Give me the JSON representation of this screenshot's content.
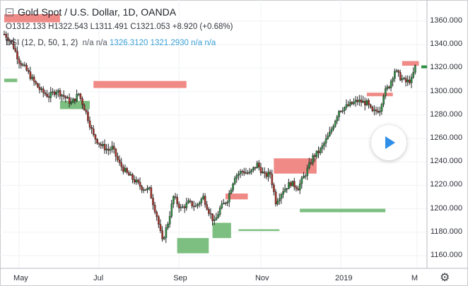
{
  "header": {
    "title": "Gold Spot / U.S. Dollar, 1D, OANDA",
    "ohlc": "O1312.133 H1322.543 L1311.491 C1321.053 +8.920 (+0.68%)",
    "indicator_name": "DSI (12, D, 50, 1, 2)",
    "indicator_na1": "n/a n/a",
    "indicator_values": "1326.3120 1321.2930 n/a n/a"
  },
  "icons": {
    "settings": "gear-icon",
    "play": "play-icon",
    "collapse": "collapse-icon"
  },
  "colors": {
    "up": "#2c8e40",
    "down": "#a83228",
    "candle_outline": "#222222",
    "demand_zone": "#7dbf80",
    "supply_zone": "#f08a86",
    "indicator_text": "#3a9fd6"
  },
  "chart_data": {
    "type": "candlestick",
    "symbol": "Gold Spot / U.S. Dollar",
    "timeframe": "1D",
    "source": "OANDA",
    "ylim": [
      1150,
      1370
    ],
    "ytick_labels": [
      "1160.000",
      "1180.000",
      "1200.000",
      "1220.000",
      "1240.000",
      "1260.000",
      "1280.000",
      "1300.000",
      "1320.000",
      "1340.000",
      "1360.000"
    ],
    "ytick_values": [
      1160,
      1180,
      1200,
      1220,
      1240,
      1260,
      1280,
      1300,
      1320,
      1340,
      1360
    ],
    "xtick_labels": [
      "May",
      "Jul",
      "Sep",
      "Nov",
      "2019",
      "M"
    ],
    "xtick_bar_index": [
      8,
      51,
      94,
      138,
      181,
      222
    ],
    "last_close": 1321.053,
    "price_path": [
      [
        0,
        1349
      ],
      [
        4,
        1342
      ],
      [
        8,
        1326
      ],
      [
        12,
        1318
      ],
      [
        16,
        1308
      ],
      [
        20,
        1300
      ],
      [
        24,
        1296
      ],
      [
        28,
        1301
      ],
      [
        32,
        1296
      ],
      [
        36,
        1290
      ],
      [
        40,
        1298
      ],
      [
        44,
        1282
      ],
      [
        48,
        1262
      ],
      [
        52,
        1254
      ],
      [
        56,
        1250
      ],
      [
        58,
        1252
      ],
      [
        62,
        1238
      ],
      [
        66,
        1230
      ],
      [
        70,
        1224
      ],
      [
        74,
        1218
      ],
      [
        78,
        1216
      ],
      [
        82,
        1194
      ],
      [
        85,
        1172
      ],
      [
        88,
        1188
      ],
      [
        91,
        1210
      ],
      [
        95,
        1200
      ],
      [
        99,
        1205
      ],
      [
        103,
        1202
      ],
      [
        107,
        1210
      ],
      [
        110,
        1198
      ],
      [
        113,
        1188
      ],
      [
        116,
        1200
      ],
      [
        120,
        1208
      ],
      [
        124,
        1228
      ],
      [
        128,
        1232
      ],
      [
        132,
        1230
      ],
      [
        136,
        1238
      ],
      [
        140,
        1228
      ],
      [
        143,
        1230
      ],
      [
        146,
        1206
      ],
      [
        150,
        1216
      ],
      [
        154,
        1222
      ],
      [
        158,
        1218
      ],
      [
        162,
        1230
      ],
      [
        166,
        1244
      ],
      [
        170,
        1250
      ],
      [
        175,
        1264
      ],
      [
        180,
        1284
      ],
      [
        185,
        1288
      ],
      [
        190,
        1292
      ],
      [
        195,
        1290
      ],
      [
        198,
        1282
      ],
      [
        202,
        1285
      ],
      [
        204,
        1298
      ],
      [
        207,
        1305
      ],
      [
        210,
        1318
      ],
      [
        213,
        1312
      ],
      [
        216,
        1308
      ],
      [
        219,
        1310
      ],
      [
        221,
        1321
      ]
    ],
    "zones": [
      {
        "kind": "supply",
        "x0": 0,
        "x1": 30,
        "y0": 1359,
        "y1": 1366
      },
      {
        "kind": "supply",
        "x0": 48,
        "x1": 98,
        "y0": 1303,
        "y1": 1309
      },
      {
        "kind": "supply",
        "x0": 119,
        "x1": 131,
        "y0": 1208,
        "y1": 1213
      },
      {
        "kind": "supply",
        "x0": 145,
        "x1": 168,
        "y0": 1230,
        "y1": 1243
      },
      {
        "kind": "supply",
        "x0": 195,
        "x1": 209,
        "y0": 1296,
        "y1": 1299
      },
      {
        "kind": "supply",
        "x0": 214,
        "x1": 223,
        "y0": 1322,
        "y1": 1326
      },
      {
        "kind": "demand",
        "x0": 0,
        "x1": 7,
        "y0": 1308,
        "y1": 1311
      },
      {
        "kind": "demand",
        "x0": 30,
        "x1": 46,
        "y0": 1285,
        "y1": 1292
      },
      {
        "kind": "demand",
        "x0": 93,
        "x1": 110,
        "y0": 1162,
        "y1": 1175
      },
      {
        "kind": "demand",
        "x0": 112,
        "x1": 122,
        "y0": 1175,
        "y1": 1188
      },
      {
        "kind": "demand",
        "x0": 126,
        "x1": 148,
        "y0": 1181,
        "y1": 1182.5
      },
      {
        "kind": "demand",
        "x0": 159,
        "x1": 205,
        "y0": 1197,
        "y1": 1200
      }
    ]
  }
}
